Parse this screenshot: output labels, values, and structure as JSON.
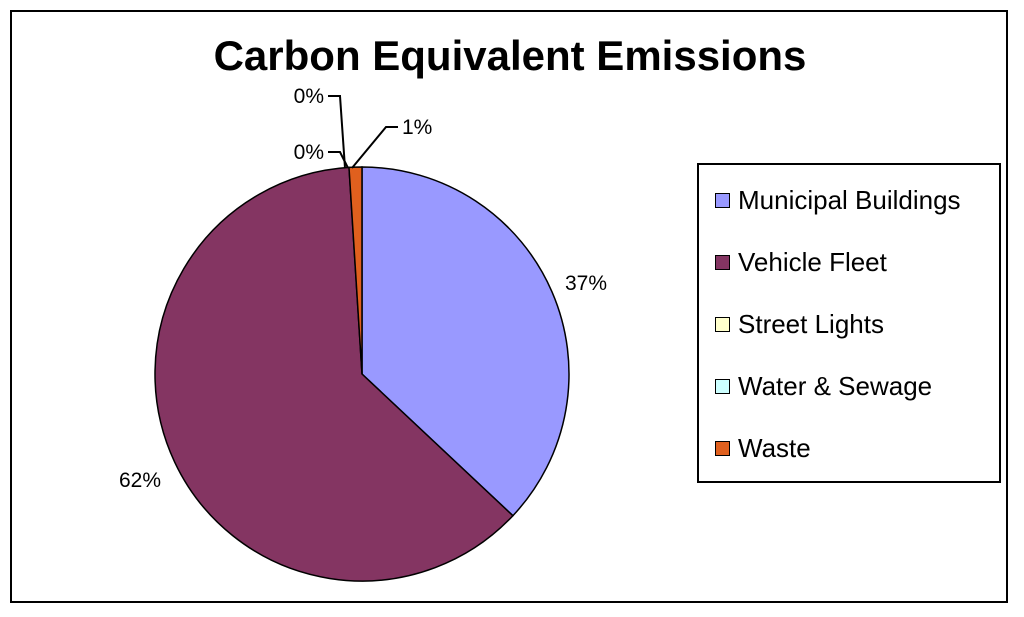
{
  "chart_data": {
    "type": "pie",
    "title": "Carbon Equivalent Emissions",
    "categories": [
      "Municipal Buildings",
      "Vehicle Fleet",
      "Street Lights",
      "Water & Sewage",
      "Waste"
    ],
    "values": [
      37,
      62,
      0,
      0,
      1
    ],
    "data_labels": [
      "37%",
      "62%",
      "0%",
      "0%",
      "1%"
    ],
    "colors": [
      "#9999ff",
      "#843562",
      "#ffffcc",
      "#ccffff",
      "#e0601e"
    ],
    "legend_position": "right"
  }
}
